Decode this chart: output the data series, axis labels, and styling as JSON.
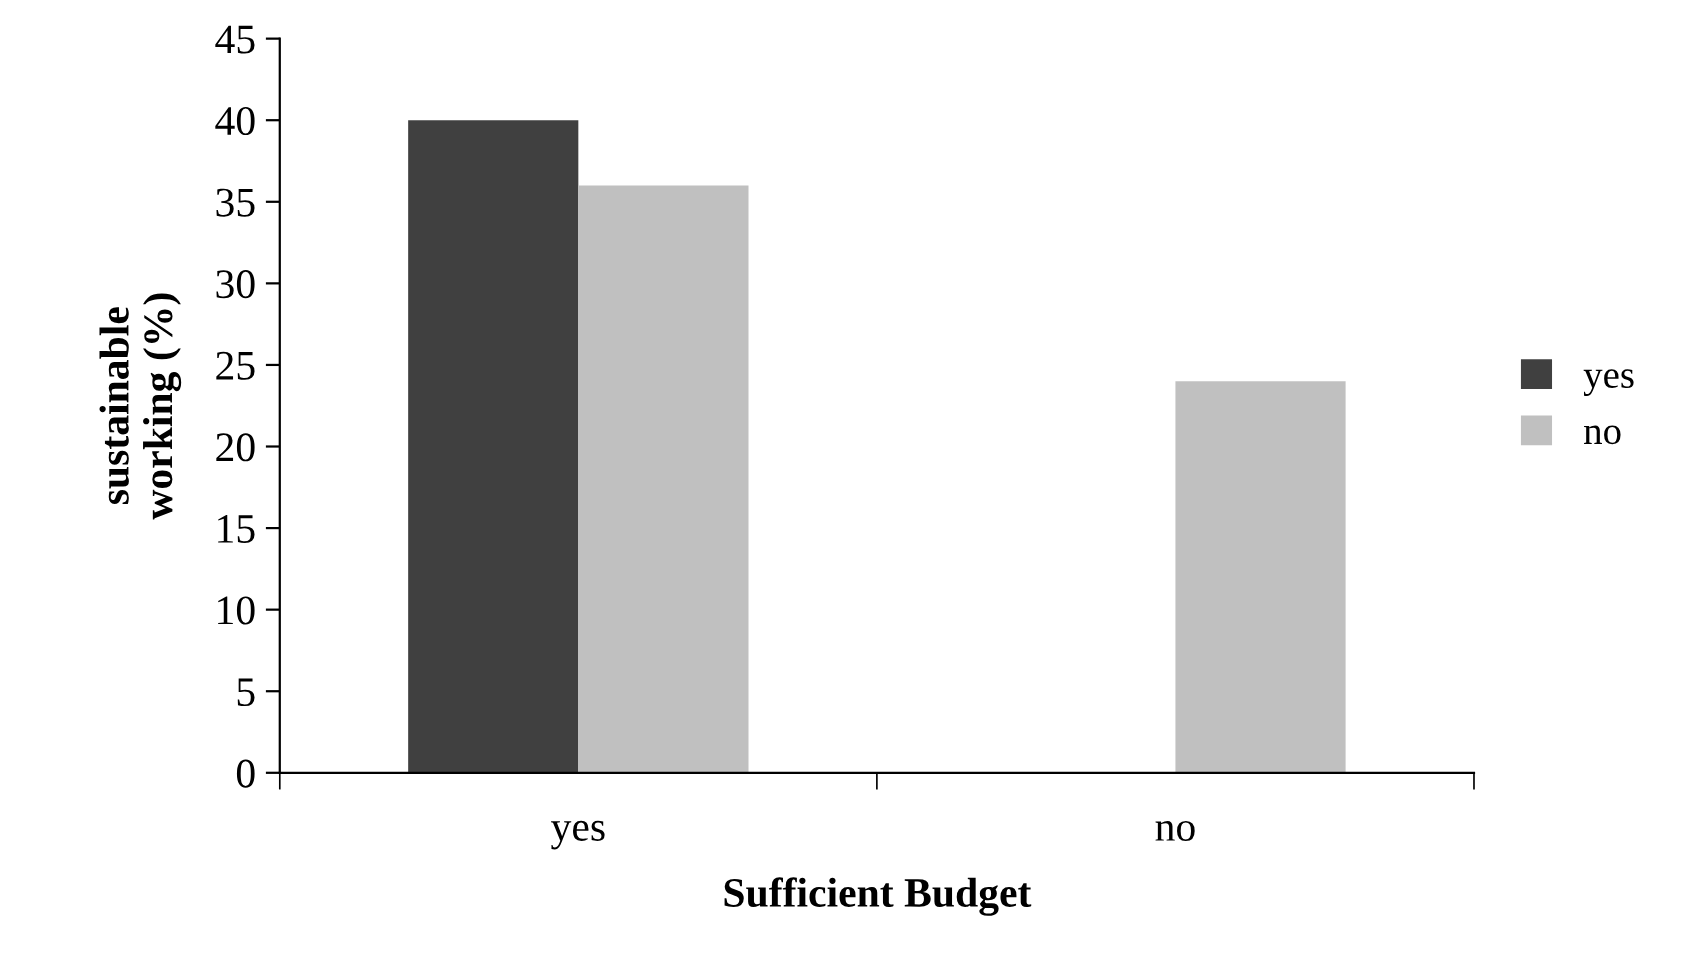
{
  "chart_data": {
    "type": "bar",
    "xlabel": "Sufficient Budget",
    "ylabel": "sustainable\nworking (%)",
    "categories": [
      "yes",
      "no"
    ],
    "series": [
      {
        "name": "yes",
        "color": "#404040",
        "values": [
          40,
          0
        ]
      },
      {
        "name": "no",
        "color": "#c0c0c0",
        "values": [
          36,
          24
        ]
      }
    ],
    "ylim": [
      0,
      45
    ],
    "yticks": [
      0,
      5,
      10,
      15,
      20,
      25,
      30,
      35,
      40,
      45
    ],
    "grid": false,
    "legend": "right"
  }
}
